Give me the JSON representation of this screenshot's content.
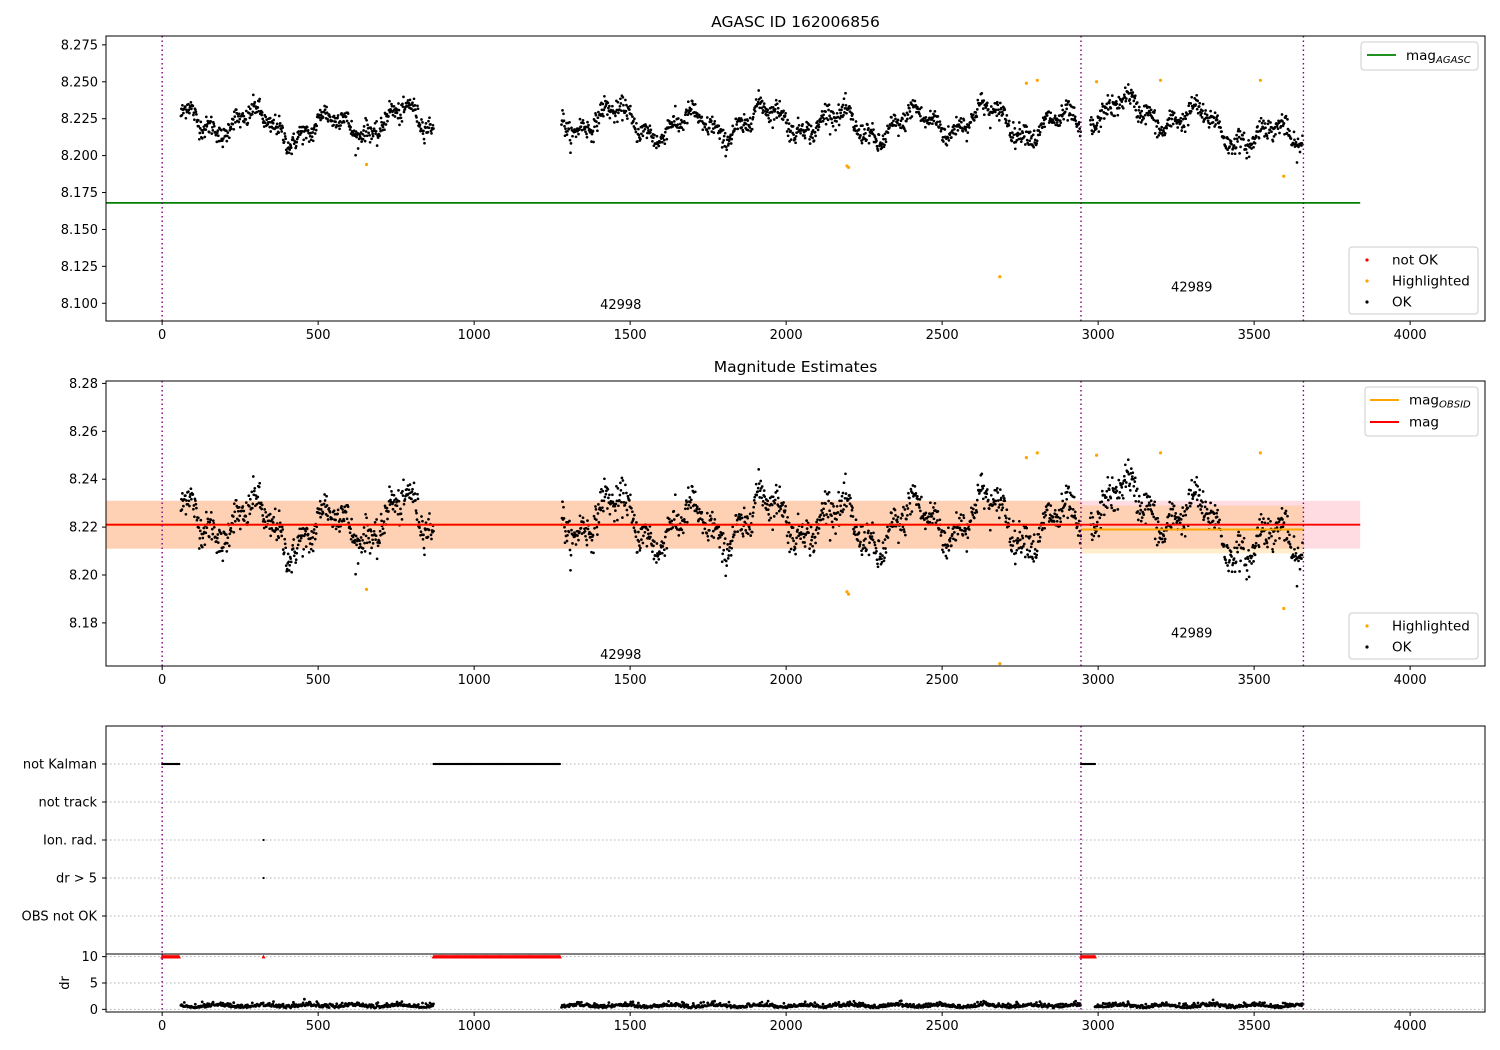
{
  "chart_data": [
    {
      "type": "scatter",
      "title": "AGASC ID 162006856",
      "xlim": [
        -180,
        4240
      ],
      "ylim": [
        8.088,
        8.281
      ],
      "xticks": [
        0,
        500,
        1000,
        1500,
        2000,
        2500,
        3000,
        3500,
        4000
      ],
      "yticks": [
        8.1,
        8.125,
        8.15,
        8.175,
        8.2,
        8.225,
        8.25,
        8.275
      ],
      "ytick_labels": [
        "8.100",
        "8.125",
        "8.150",
        "8.175",
        "8.200",
        "8.225",
        "8.250",
        "8.275"
      ],
      "colors": {
        "ok": "#000000",
        "highlighted": "#ffa500",
        "not_ok": "#ff0000",
        "agasc_line": "#008000",
        "obs_boundary": "#800080"
      },
      "segments": [
        [
          60,
          870,
          8.221
        ],
        [
          1280,
          2945,
          8.222
        ],
        [
          2975,
          3655,
          8.222
        ]
      ],
      "agasc_mag": 8.168,
      "agasc_line_x": [
        -180,
        3840
      ],
      "obs_boundaries": [
        0,
        2945,
        3658
      ],
      "obs_labels": [
        {
          "text": "42998",
          "x": 1470,
          "y": 8.096
        },
        {
          "text": "42989",
          "x": 3300,
          "y": 8.108
        }
      ],
      "highlighted_points": [
        [
          655,
          8.194
        ],
        [
          2195,
          8.193
        ],
        [
          2200,
          8.192
        ],
        [
          2685,
          8.118
        ],
        [
          2770,
          8.249
        ],
        [
          2805,
          8.251
        ],
        [
          2995,
          8.25
        ],
        [
          3200,
          8.251
        ],
        [
          3520,
          8.251
        ],
        [
          3595,
          8.186
        ]
      ],
      "legend_top": [
        {
          "label": "mag",
          "sub": "AGASC",
          "color": "#008000"
        }
      ],
      "legend_bottom": [
        {
          "label": "not OK",
          "color": "#ff0000"
        },
        {
          "label": "Highlighted",
          "color": "#ffa500"
        },
        {
          "label": "OK",
          "color": "#000000"
        }
      ]
    },
    {
      "type": "scatter",
      "title": "Magnitude Estimates",
      "xlim": [
        -180,
        4240
      ],
      "ylim": [
        8.162,
        8.281
      ],
      "xticks": [
        0,
        500,
        1000,
        1500,
        2000,
        2500,
        3000,
        3500,
        4000
      ],
      "yticks": [
        8.18,
        8.2,
        8.22,
        8.24,
        8.26,
        8.28
      ],
      "ytick_labels": [
        "8.18",
        "8.20",
        "8.22",
        "8.24",
        "8.26",
        "8.28"
      ],
      "mag": 8.221,
      "mag_band": [
        8.211,
        8.231
      ],
      "mag_obsid": [
        {
          "x": [
            -180,
            2945
          ],
          "y": 8.221,
          "band": [
            8.211,
            8.231
          ]
        },
        {
          "x": [
            2945,
            3658
          ],
          "y": 8.219,
          "band": [
            8.209,
            8.229
          ]
        }
      ],
      "obs_boundaries": [
        0,
        2945,
        3658
      ],
      "obs_labels": [
        {
          "text": "42998",
          "x": 1470,
          "y": 8.165
        },
        {
          "text": "42989",
          "x": 3300,
          "y": 8.174
        }
      ],
      "highlighted_points": [
        [
          655,
          8.194
        ],
        [
          2195,
          8.193
        ],
        [
          2200,
          8.192
        ],
        [
          2685,
          8.163
        ],
        [
          2770,
          8.249
        ],
        [
          2805,
          8.251
        ],
        [
          2995,
          8.25
        ],
        [
          3200,
          8.251
        ],
        [
          3520,
          8.251
        ],
        [
          3595,
          8.186
        ]
      ],
      "legend_top": [
        {
          "label": "mag",
          "sub": "OBSID",
          "color": "#ffa500"
        },
        {
          "label": "mag",
          "sub": "",
          "color": "#ff0000"
        }
      ],
      "legend_bottom": [
        {
          "label": "Highlighted",
          "color": "#ffa500"
        },
        {
          "label": "OK",
          "color": "#000000"
        }
      ]
    },
    {
      "type": "scatter",
      "title": "",
      "xlim": [
        -180,
        4240
      ],
      "xticks": [
        0,
        500,
        1000,
        1500,
        2000,
        2500,
        3000,
        3500,
        4000
      ],
      "flag_rows": [
        "not Kalman",
        "not track",
        "Ion. rad.",
        "dr > 5",
        "OBS not OK"
      ],
      "flags": {
        "not Kalman": [
          [
            0,
            55
          ],
          [
            870,
            1275
          ],
          [
            2945,
            2990
          ]
        ],
        "not track": [],
        "Ion. rad.": [
          [
            325,
            325
          ]
        ],
        "dr > 5": [
          [
            325,
            325
          ]
        ],
        "OBS not OK": []
      },
      "obs_boundaries": [
        0,
        2945,
        3658
      ]
    },
    {
      "type": "scatter",
      "title": "",
      "ylabel": "dr",
      "xlim": [
        -180,
        4240
      ],
      "ylim": [
        -0.5,
        10.5
      ],
      "xticks": [
        0,
        500,
        1000,
        1500,
        2000,
        2500,
        3000,
        3500,
        4000
      ],
      "yticks": [
        0,
        5,
        10
      ],
      "ytick_labels": [
        "0",
        "5",
        "10"
      ],
      "dr_clipped": 10,
      "dr_clipped_ranges": [
        [
          0,
          55
        ],
        [
          325,
          325
        ],
        [
          870,
          1275
        ],
        [
          2945,
          2990
        ]
      ],
      "dr_ok_ranges": [
        [
          60,
          870
        ],
        [
          1280,
          2945
        ],
        [
          2990,
          3658
        ]
      ],
      "obs_boundaries": [
        0,
        2945,
        3658
      ]
    }
  ]
}
